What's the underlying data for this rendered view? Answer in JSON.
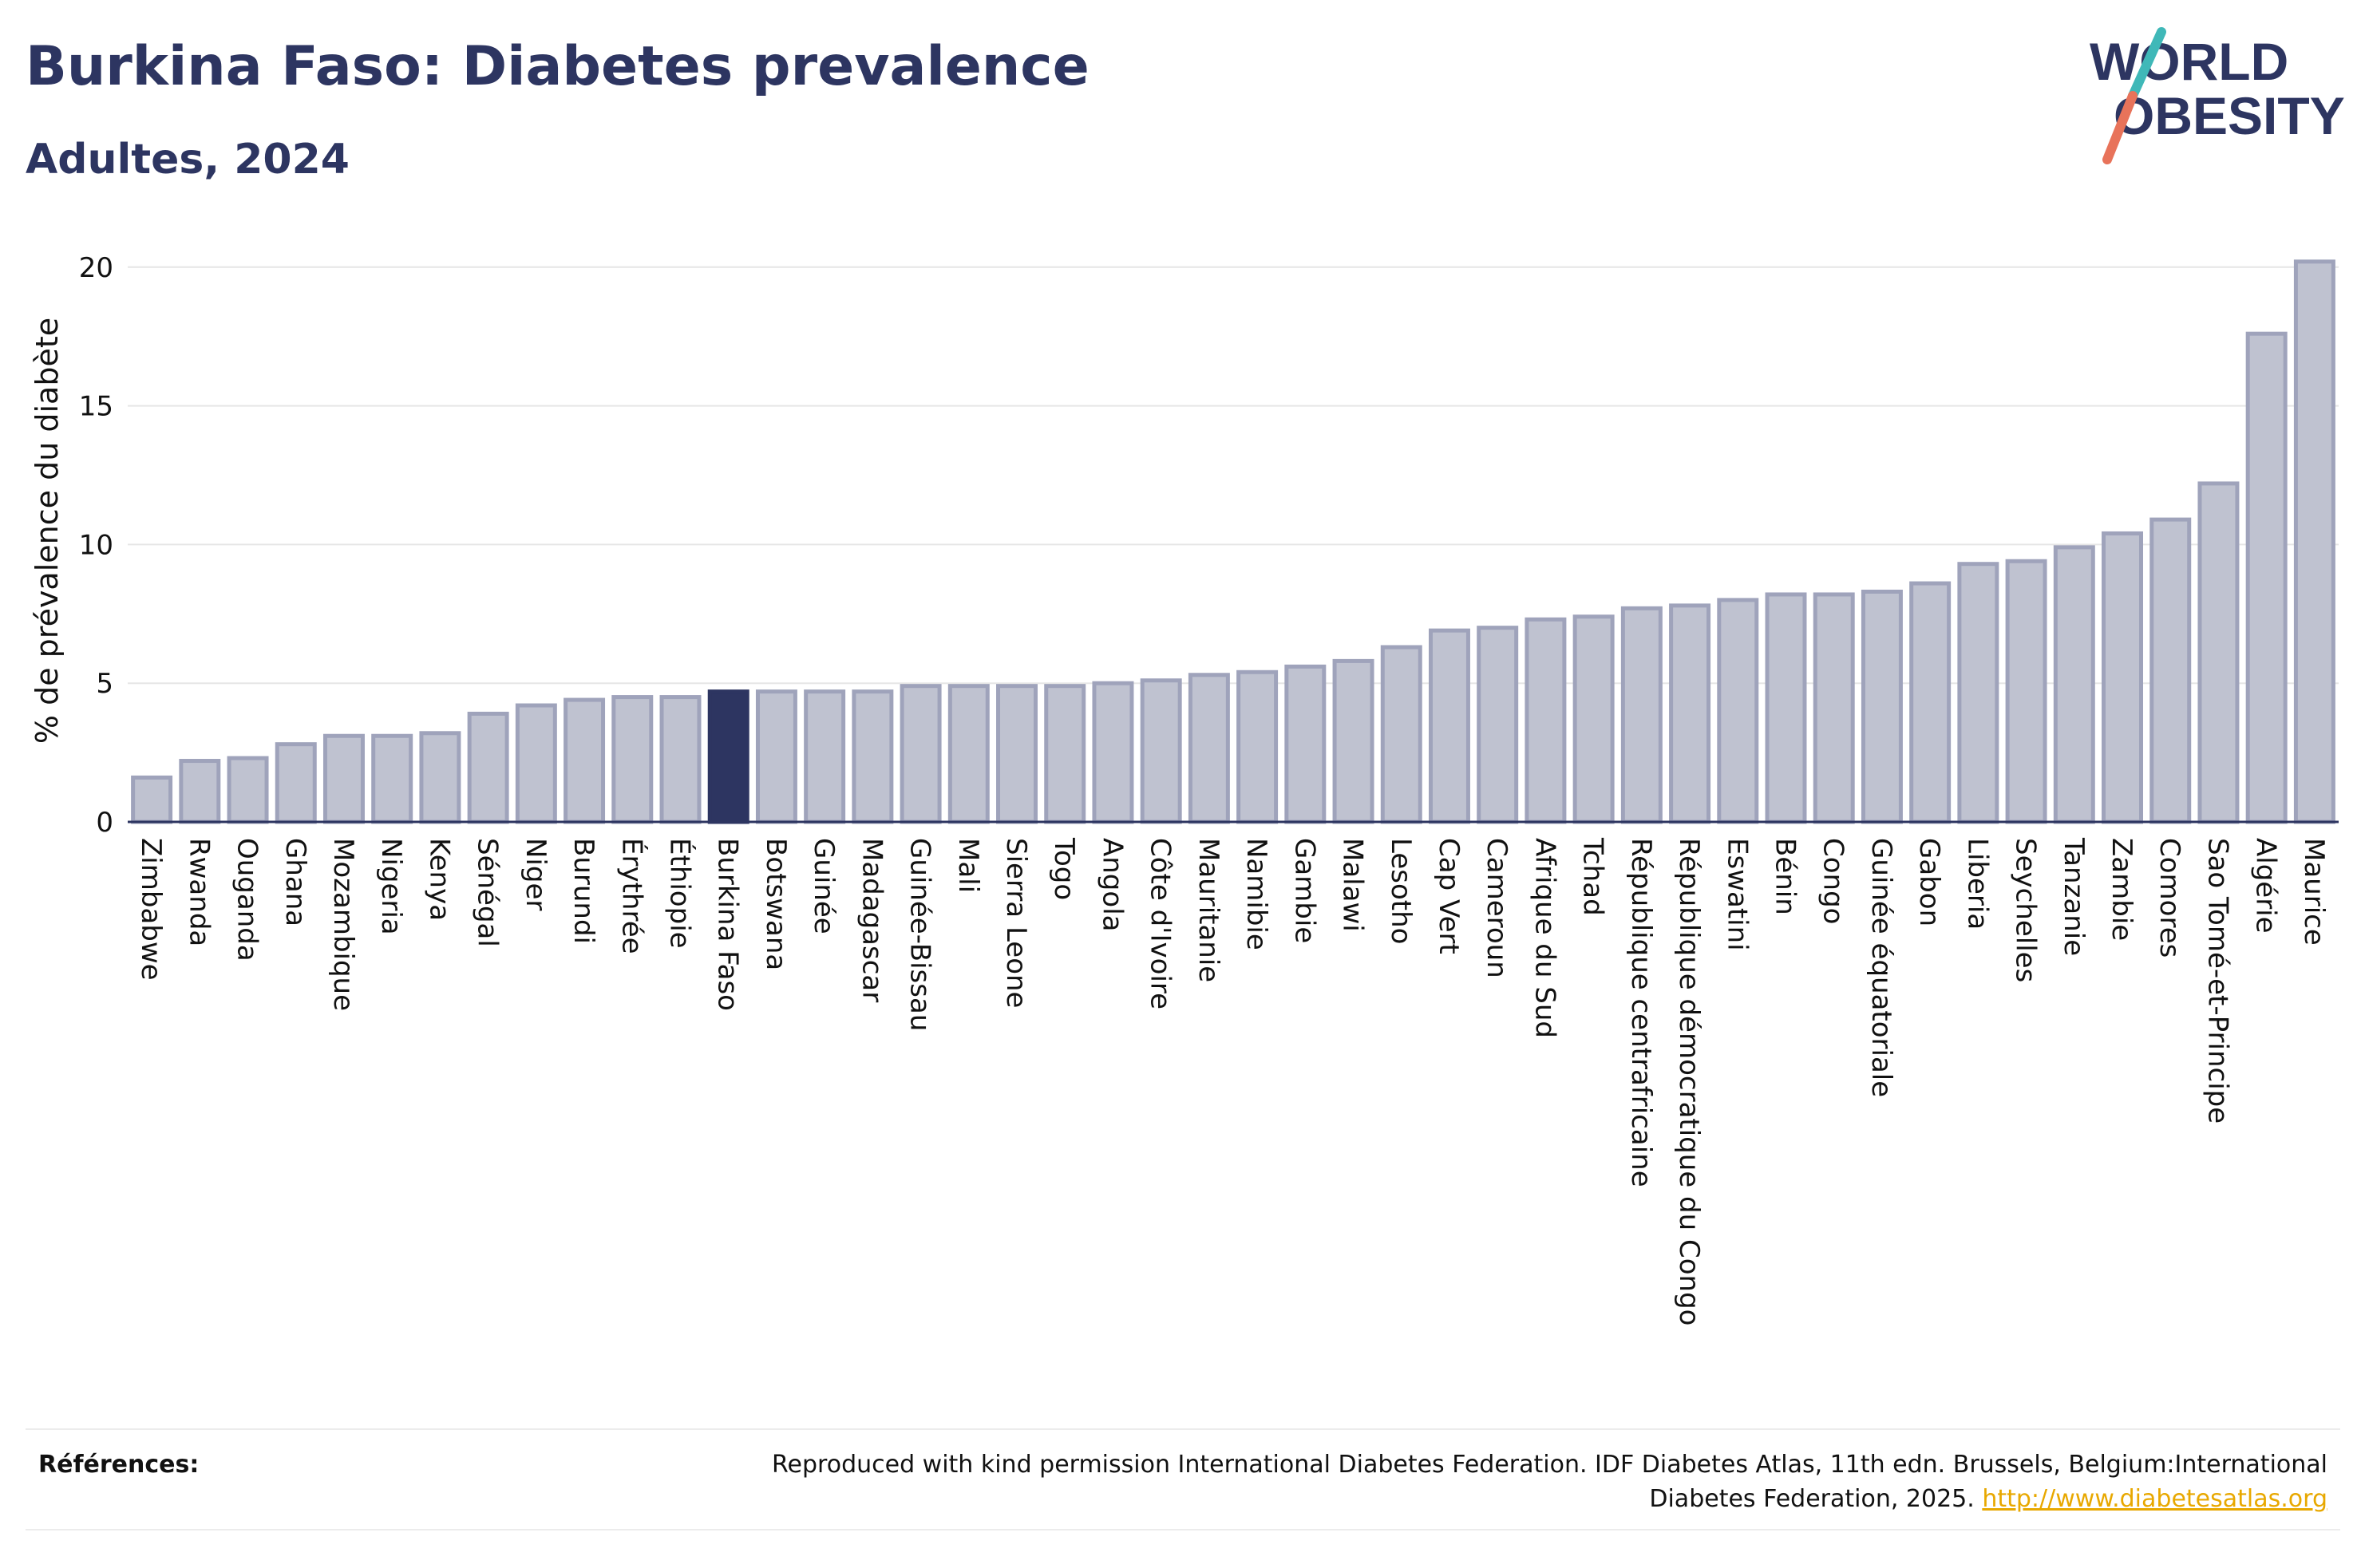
{
  "header": {
    "title": "Burkina Faso: Diabetes prevalence",
    "subtitle": "Adultes, 2024"
  },
  "logo": {
    "line1": "WORLD",
    "line2": "OBESITY",
    "accent_teal": "#3fb8b8",
    "accent_red": "#e8735a",
    "text_color": "#2d3561"
  },
  "chart_data": {
    "type": "bar",
    "ylabel": "% de prévalence du diabète",
    "ylim": [
      0,
      21
    ],
    "yticks": [
      0,
      5,
      10,
      15,
      20
    ],
    "grid": true,
    "highlight": "Burkina Faso",
    "colors": {
      "bar_fill": "#bfc2d0",
      "bar_stroke": "#9fa3bb",
      "highlight_fill": "#2d3561",
      "grid": "#e6e6e6",
      "axis": "#2d3561"
    },
    "categories": [
      "Zimbabwe",
      "Rwanda",
      "Ouganda",
      "Ghana",
      "Mozambique",
      "Nigeria",
      "Kenya",
      "Sénégal",
      "Niger",
      "Burundi",
      "Érythrée",
      "Éthiopie",
      "Burkina Faso",
      "Botswana",
      "Guinée",
      "Madagascar",
      "Guinée-Bissau",
      "Mali",
      "Sierra Leone",
      "Togo",
      "Angola",
      "Côte d'Ivoire",
      "Mauritanie",
      "Namibie",
      "Gambie",
      "Malawi",
      "Lesotho",
      "Cap Vert",
      "Cameroun",
      "Afrique du Sud",
      "Tchad",
      "République centrafricaine",
      "République démocratique du Congo",
      "Eswatini",
      "Bénin",
      "Congo",
      "Guinée équatoriale",
      "Gabon",
      "Liberia",
      "Seychelles",
      "Tanzanie",
      "Zambie",
      "Comores",
      "Sao Tomé-et-Principe",
      "Algérie",
      "Maurice"
    ],
    "values": [
      1.6,
      2.2,
      2.3,
      2.8,
      3.1,
      3.1,
      3.2,
      3.9,
      4.2,
      4.4,
      4.5,
      4.5,
      4.7,
      4.7,
      4.7,
      4.7,
      4.9,
      4.9,
      4.9,
      4.9,
      5.0,
      5.1,
      5.3,
      5.4,
      5.6,
      5.8,
      6.3,
      6.9,
      7.0,
      7.3,
      7.4,
      7.7,
      7.8,
      8.0,
      8.2,
      8.2,
      8.3,
      8.6,
      9.3,
      9.4,
      9.9,
      10.4,
      10.9,
      12.2,
      17.6,
      20.2
    ]
  },
  "references": {
    "label": "Références:",
    "text": "Reproduced with kind permission International Diabetes Federation. IDF Diabetes Atlas, 11th edn. Brussels, Belgium:International Diabetes Federation, 2025.",
    "link": "http://www.diabetesatlas.org"
  }
}
